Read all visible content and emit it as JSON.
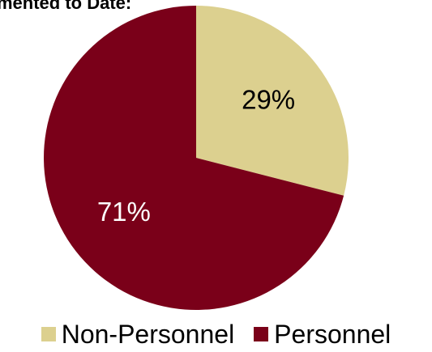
{
  "chart_data": {
    "type": "pie",
    "title": "mented  to Date:",
    "slices": [
      {
        "name": "Non-Personnel",
        "value": 29,
        "label": "29%",
        "color": "#dcd08f"
      },
      {
        "name": "Personnel",
        "value": 71,
        "label": "71%",
        "color": "#7a0019"
      }
    ],
    "start_angle": "12 o'clock, clockwise",
    "legend_placement": "bottom",
    "label_colors": {
      "Non-Personnel": "#000000",
      "Personnel": "#ffffff"
    }
  }
}
